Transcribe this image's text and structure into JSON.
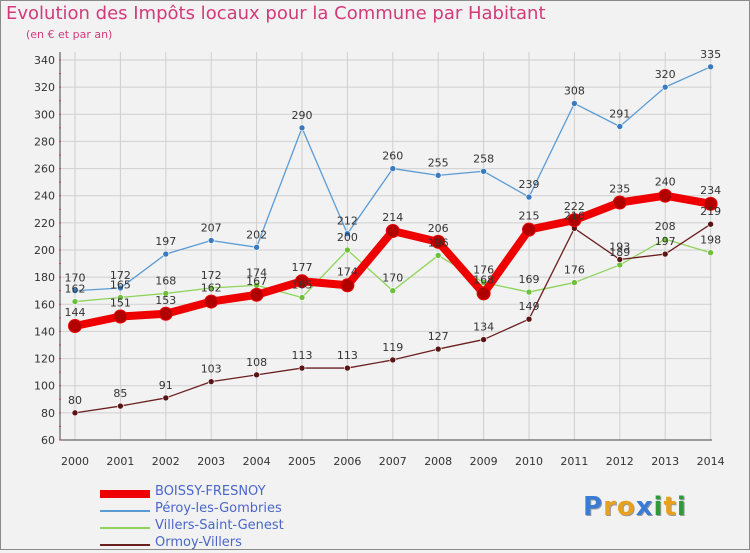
{
  "chart_data": {
    "type": "line",
    "title": "Evolution des Impôts locaux pour la Commune par Habitant",
    "subtitle": "(en € et par an)",
    "categories": [
      "2000",
      "2001",
      "2002",
      "2003",
      "2004",
      "2005",
      "2006",
      "2007",
      "2008",
      "2009",
      "2010",
      "2011",
      "2012",
      "2013",
      "2014"
    ],
    "ylim": [
      60,
      340
    ],
    "yticks": [
      60,
      80,
      100,
      120,
      140,
      160,
      180,
      200,
      220,
      240,
      260,
      280,
      300,
      320,
      340
    ],
    "series": [
      {
        "name": "BOISSY-FRESNOY",
        "color": "#ee0000",
        "values": [
          144,
          151,
          153,
          162,
          167,
          177,
          174,
          214,
          206,
          168,
          215,
          222,
          235,
          240,
          234
        ]
      },
      {
        "name": "Péroy-les-Gombries",
        "color": "#5b9bd5",
        "values": [
          170,
          172,
          197,
          207,
          202,
          290,
          212,
          260,
          255,
          258,
          239,
          308,
          291,
          320,
          335
        ]
      },
      {
        "name": "Villers-Saint-Genest",
        "color": "#8ed45a",
        "values": [
          162,
          165,
          168,
          172,
          174,
          165,
          200,
          170,
          196,
          176,
          169,
          176,
          189,
          208,
          198
        ]
      },
      {
        "name": "Ormoy-Villers",
        "color": "#6b1f1f",
        "values": [
          80,
          85,
          91,
          103,
          108,
          113,
          113,
          119,
          127,
          134,
          149,
          216,
          193,
          197,
          219
        ]
      }
    ]
  },
  "logo": {
    "letters": [
      "P",
      "r",
      "o",
      "x",
      "i",
      "t",
      "i"
    ],
    "colors": [
      "#3a7bd5",
      "#e8a020",
      "#e8a020",
      "#3a7bd5",
      "#2e9a3a",
      "#e8a020",
      "#2e9a3a"
    ]
  }
}
